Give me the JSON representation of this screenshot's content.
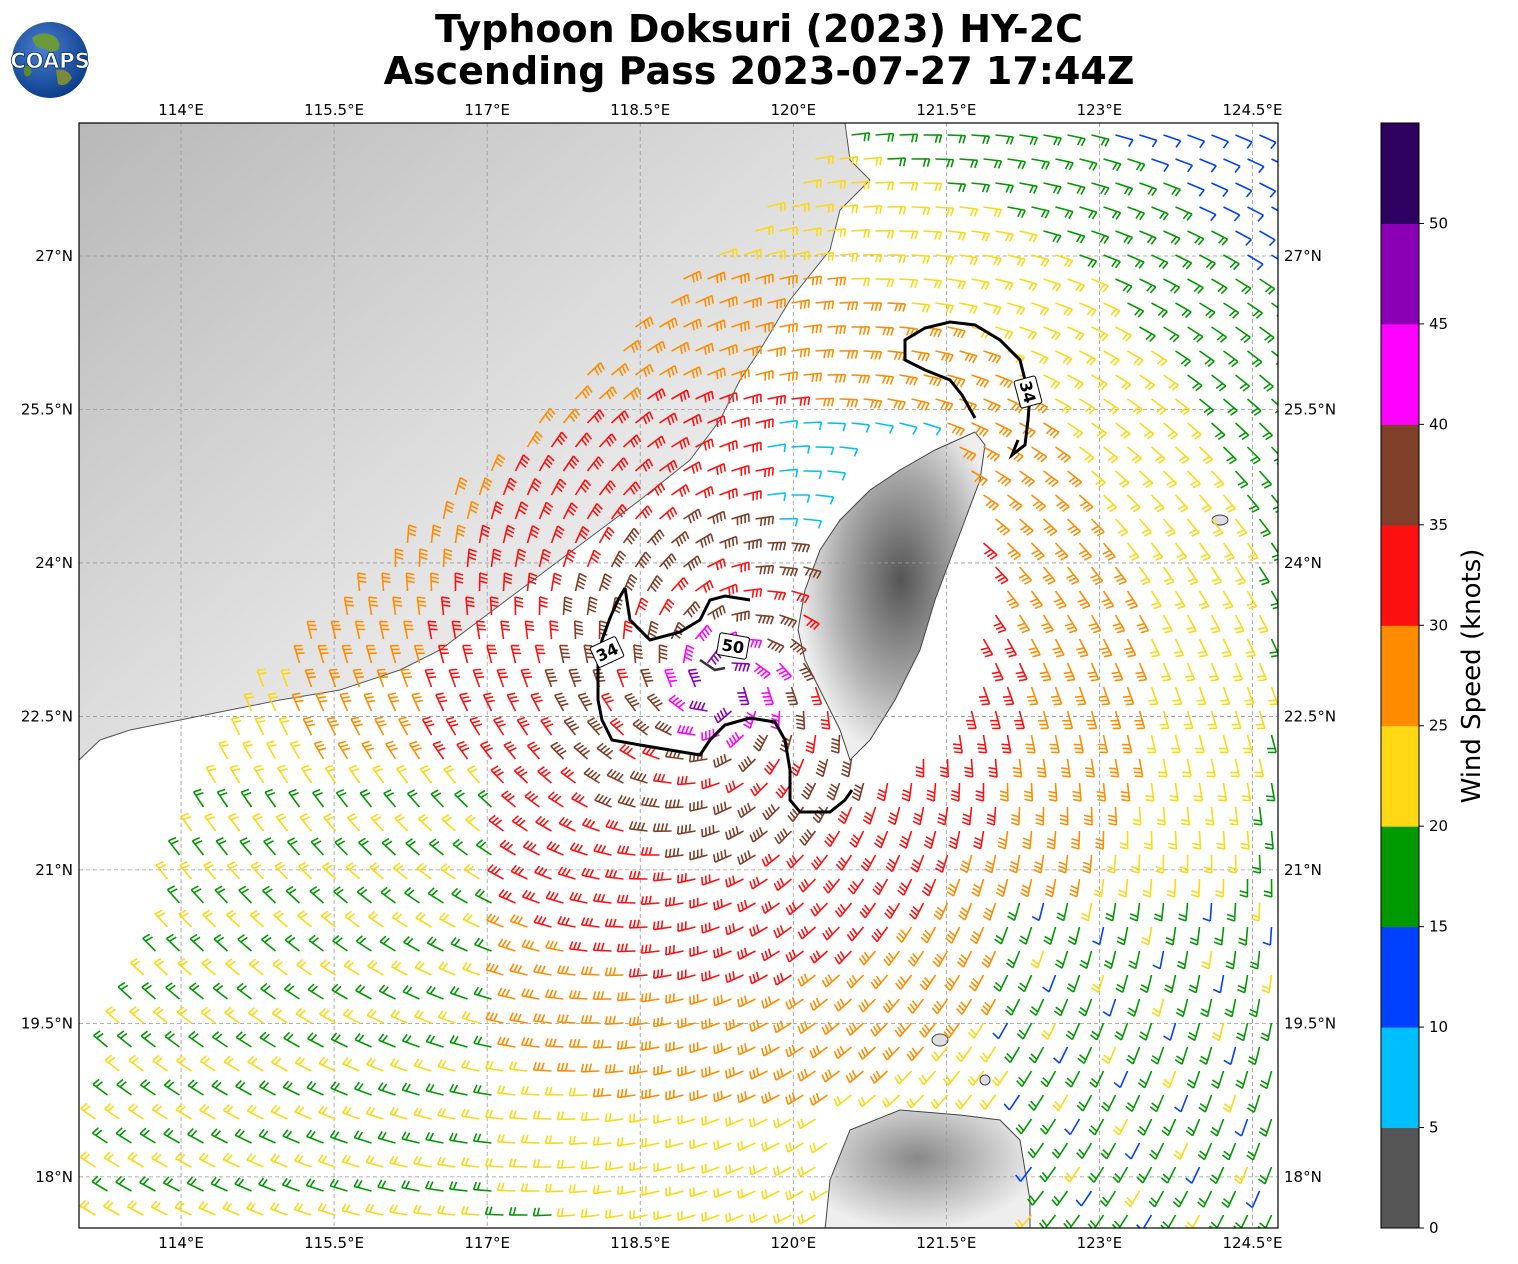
{
  "title": {
    "line1": "Typhoon Doksuri (2023) HY-2C",
    "line2": "Ascending Pass 2023-07-27 17:44Z"
  },
  "logo": {
    "text": "COAPS"
  },
  "map": {
    "lon_range": [
      113.0,
      124.75
    ],
    "lat_range": [
      17.5,
      28.3
    ],
    "lon_ticks": [
      "114°E",
      "115.5°E",
      "117°E",
      "118.5°E",
      "120°E",
      "121.5°E",
      "123°E",
      "124.5°E"
    ],
    "lat_ticks": [
      "27°N",
      "25.5°N",
      "24°N",
      "22.5°N",
      "21°N",
      "19.5°N",
      "18°N"
    ],
    "contour_labels": [
      "34",
      "50",
      "34"
    ]
  },
  "colorbar": {
    "label": "Wind Speed (knots)",
    "ticks": [
      "0",
      "5",
      "10",
      "15",
      "20",
      "25",
      "30",
      "35",
      "40",
      "45",
      "50"
    ],
    "colors": [
      "#555555",
      "#00bfff",
      "#0040ff",
      "#009900",
      "#ffd712",
      "#ff8c00",
      "#ff1010",
      "#803f29",
      "#ff00ff",
      "#8b00b5",
      "#2e0060"
    ]
  },
  "typhoon_center": {
    "lon": 119.3,
    "lat": 22.8
  }
}
